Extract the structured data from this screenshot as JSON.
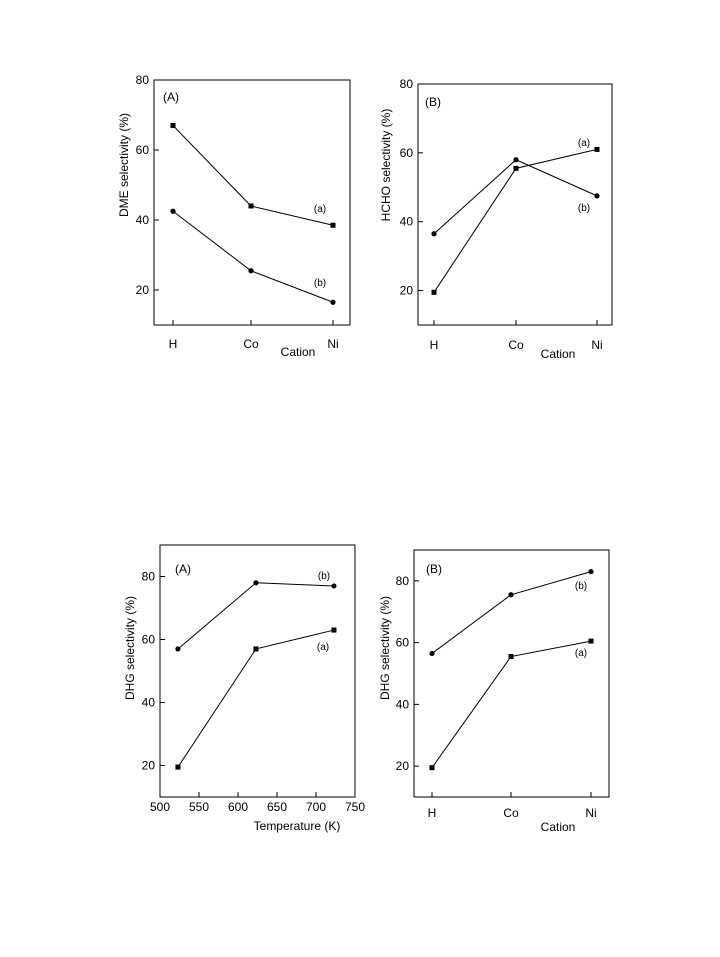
{
  "chart_data": [
    {
      "type": "line",
      "panel_label": "(A)",
      "xlabel": "Cation",
      "ylabel": "DME selectivity (%)",
      "categories": [
        "H",
        "Co",
        "Ni"
      ],
      "ylim": [
        10,
        80
      ],
      "yticks": [
        20,
        40,
        60,
        80
      ],
      "series": [
        {
          "label": "(a)",
          "marker": "square",
          "values": [
            67,
            44,
            38.5
          ]
        },
        {
          "label": "(b)",
          "marker": "circle",
          "values": [
            42.5,
            25.5,
            16.5
          ]
        }
      ]
    },
    {
      "type": "line",
      "panel_label": "(B)",
      "xlabel": "Cation",
      "ylabel": "HCHO selectivity (%)",
      "categories": [
        "H",
        "Co",
        "Ni"
      ],
      "ylim": [
        10,
        80
      ],
      "yticks": [
        20,
        40,
        60,
        80
      ],
      "series": [
        {
          "label": "(a)",
          "marker": "square",
          "values": [
            19.5,
            55.5,
            61
          ]
        },
        {
          "label": "(b)",
          "marker": "circle",
          "values": [
            36.5,
            58,
            47.5
          ]
        }
      ]
    },
    {
      "type": "line",
      "panel_label": "(A)",
      "xlabel": "Temperature (K)",
      "ylabel": "DHG selectivity (%)",
      "x": [
        523,
        623,
        723
      ],
      "xlim": [
        500,
        750
      ],
      "xticks": [
        500,
        550,
        600,
        650,
        700,
        750
      ],
      "ylim": [
        10,
        90
      ],
      "yticks": [
        20,
        40,
        60,
        80
      ],
      "series": [
        {
          "label": "(a)",
          "marker": "square",
          "values": [
            19.5,
            57,
            63
          ]
        },
        {
          "label": "(b)",
          "marker": "circle",
          "values": [
            57,
            78,
            77
          ]
        }
      ]
    },
    {
      "type": "line",
      "panel_label": "(B)",
      "xlabel": "Cation",
      "ylabel": "DHG selectivity (%)",
      "categories": [
        "H",
        "Co",
        "Ni"
      ],
      "ylim": [
        10,
        90
      ],
      "yticks": [
        20,
        40,
        60,
        80
      ],
      "series": [
        {
          "label": "(a)",
          "marker": "square",
          "values": [
            19.5,
            55.5,
            60.5
          ]
        },
        {
          "label": "(b)",
          "marker": "circle",
          "values": [
            56.5,
            75.5,
            83
          ]
        }
      ]
    }
  ]
}
